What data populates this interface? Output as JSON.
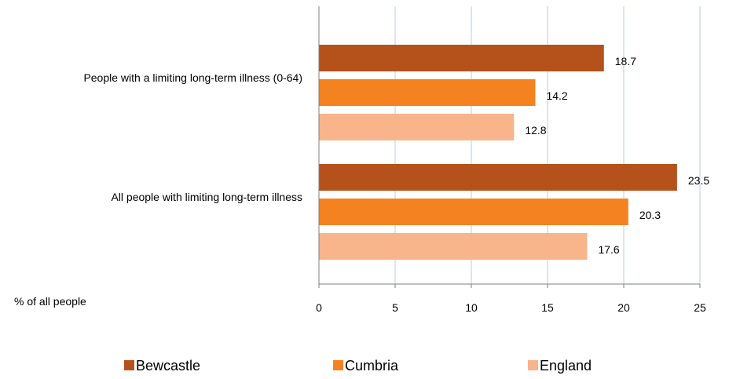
{
  "chart_data": {
    "type": "bar",
    "orientation": "horizontal",
    "categories": [
      "People with a limiting long-term illness (0-64)",
      "All people with limiting long-term illness"
    ],
    "series": [
      {
        "name": "Bewcastle",
        "color": "#B5521B",
        "values": [
          18.7,
          23.5
        ]
      },
      {
        "name": "Cumbria",
        "color": "#F58220",
        "values": [
          14.2,
          20.3
        ]
      },
      {
        "name": "England",
        "color": "#F8B48A",
        "values": [
          12.8,
          17.6
        ]
      }
    ],
    "value_labels": [
      [
        "18.7",
        "23.5"
      ],
      [
        "14.2",
        "20.3"
      ],
      [
        "12.8",
        "17.6"
      ]
    ],
    "xlabel": "% of all people",
    "xlim": [
      0,
      25
    ],
    "xticks": [
      0,
      5,
      10,
      15,
      20,
      25
    ],
    "grid": "vertical",
    "grid_color": "#B9CDE5",
    "legend_position": "bottom"
  }
}
